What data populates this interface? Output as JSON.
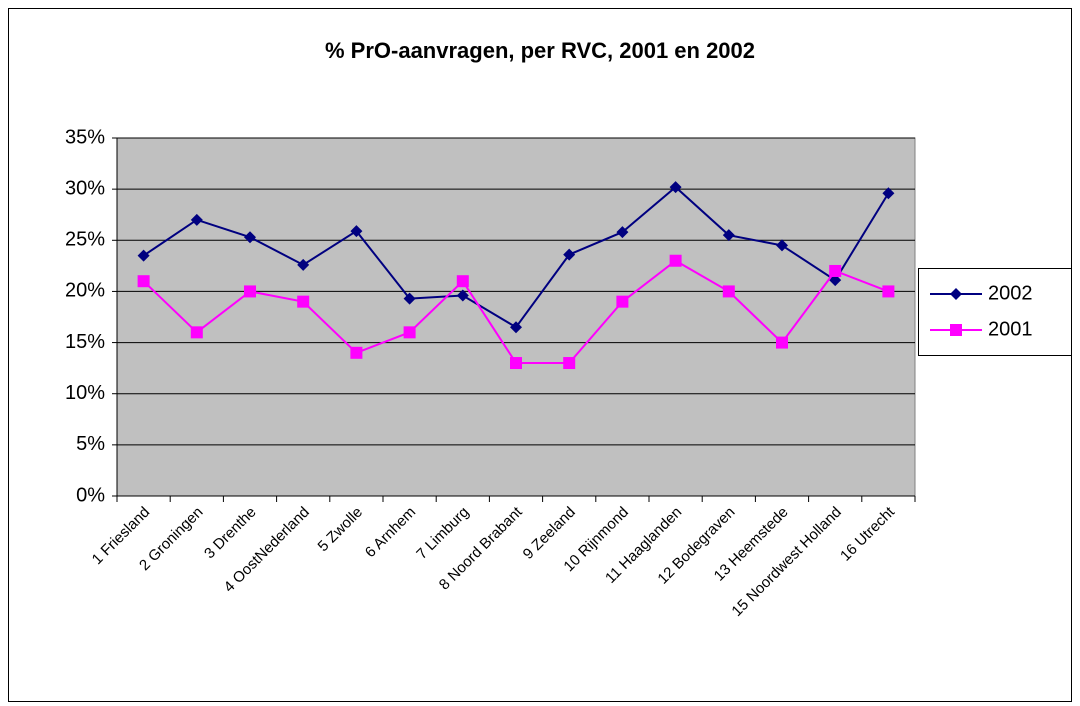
{
  "chart_data": {
    "type": "line",
    "title": "% PrO-aanvragen, per RVC, 2001 en 2002",
    "categories": [
      "1  Friesland",
      "2 Groningen",
      "3  Drenthe",
      "4 OostNederland",
      "5  Zwolle",
      "6  Arnhem",
      "7  Limburg",
      "8  Noord Brabant",
      "9  Zeeland",
      "10  Rijnmond",
      "11  Haaglanden",
      "12  Bodegraven",
      "13  Heemstede",
      "15  Noordwest Holland",
      "16  Utrecht"
    ],
    "series": [
      {
        "name": "2002",
        "color": "#000080",
        "marker": "diamond",
        "values": [
          23.5,
          27,
          25.3,
          22.6,
          25.9,
          19.3,
          19.6,
          16.5,
          23.6,
          25.8,
          30.2,
          25.5,
          24.5,
          21.1,
          29.6
        ]
      },
      {
        "name": "2001",
        "color": "#ff00ff",
        "marker": "square",
        "values": [
          21,
          16,
          20,
          19,
          14,
          16,
          21,
          13,
          13,
          19,
          23,
          20,
          15,
          22,
          20
        ]
      }
    ],
    "ylim": [
      0,
      35
    ],
    "yticks": [
      {
        "value": 0,
        "label": "0%"
      },
      {
        "value": 5,
        "label": "5%"
      },
      {
        "value": 10,
        "label": "10%"
      },
      {
        "value": 15,
        "label": "15%"
      },
      {
        "value": 20,
        "label": "20%"
      },
      {
        "value": 25,
        "label": "25%"
      },
      {
        "value": 30,
        "label": "30%"
      },
      {
        "value": 35,
        "label": "35%"
      }
    ],
    "grid": true,
    "legend": "right"
  }
}
